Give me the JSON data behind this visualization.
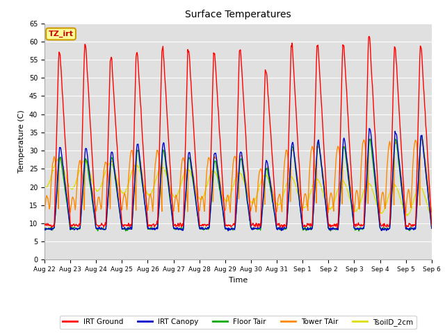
{
  "title": "Surface Temperatures",
  "xlabel": "Time",
  "ylabel": "Temperature (C)",
  "ylim": [
    0,
    65
  ],
  "yticks": [
    0,
    5,
    10,
    15,
    20,
    25,
    30,
    35,
    40,
    45,
    50,
    55,
    60,
    65
  ],
  "plot_bg_color": "#e0e0e0",
  "fig_bg_color": "#ffffff",
  "legend_entries": [
    "IRT Ground",
    "IRT Canopy",
    "Floor Tair",
    "Tower TAir",
    "TsoilD_2cm"
  ],
  "legend_colors": [
    "#ff0000",
    "#0000cc",
    "#00bb00",
    "#ff8800",
    "#dddd00"
  ],
  "annotation_text": "TZ_irt",
  "annotation_color": "#cc0000",
  "annotation_bg": "#ffff99",
  "annotation_border": "#cc9900",
  "tick_labels": [
    "Aug 22",
    "Aug 23",
    "Aug 24",
    "Aug 25",
    "Aug 26",
    "Aug 27",
    "Aug 28",
    "Aug 29",
    "Aug 30",
    "Aug 31",
    "Sep 1",
    "Sep 2",
    "Sep 3",
    "Sep 4",
    "Sep 5",
    "Sep 6"
  ],
  "n_days": 15,
  "pts_per_day": 48,
  "peak_irt_ground": [
    57,
    59,
    55.5,
    57,
    58,
    57.5,
    56.5,
    57.5,
    52,
    59,
    59,
    59,
    61,
    58,
    58.5
  ],
  "peak_irt_canopy": [
    31,
    30.5,
    29.5,
    31.5,
    32,
    29.5,
    29.5,
    29.5,
    27,
    32,
    32.5,
    33,
    36,
    35,
    34
  ],
  "peak_floor_tair": [
    28,
    27.5,
    28,
    30,
    30,
    28,
    27,
    28,
    25,
    31,
    32,
    31,
    33,
    33,
    34
  ],
  "peak_tower_tair": [
    28,
    27,
    27,
    30,
    30,
    28,
    28,
    28.5,
    25,
    30,
    31,
    31,
    33,
    32,
    33
  ]
}
